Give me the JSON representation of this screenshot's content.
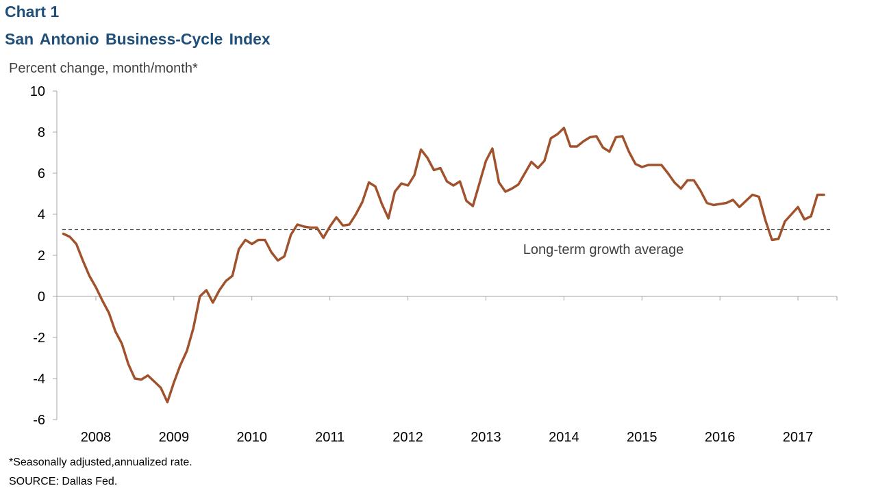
{
  "header": {
    "chart_label": "Chart 1",
    "title": "San Antonio  Business-Cycle  Index"
  },
  "footer": {
    "footnote": "*Seasonally adjusted,annualized rate.",
    "source": "SOURCE: Dallas Fed."
  },
  "colors": {
    "series": "#a0522d",
    "reference_line": "#404040",
    "title": "#1f4e79"
  },
  "chart_data": {
    "type": "line",
    "title": "San Antonio  Business-Cycle  Index",
    "ylabel": "Percent change, month/month*",
    "xlabel": "",
    "ylim": [
      -6,
      10
    ],
    "yticks": [
      -6,
      -4,
      -2,
      0,
      2,
      4,
      6,
      8,
      10
    ],
    "xlim": [
      2007.5,
      2017.5
    ],
    "xtick_labels": [
      "2008",
      "2009",
      "2010",
      "2011",
      "2012",
      "2013",
      "2014",
      "2015",
      "2016",
      "2017"
    ],
    "grid": false,
    "reference_line": {
      "value": 3.25,
      "label": "Long-term growth average",
      "style": "dashed"
    },
    "series": [
      {
        "values": [
          [
            2007.583,
            3.05
          ],
          [
            2007.667,
            2.9
          ],
          [
            2007.75,
            2.55
          ],
          [
            2007.833,
            1.75
          ],
          [
            2007.917,
            1.0
          ],
          [
            2008.0,
            0.45
          ],
          [
            2008.083,
            -0.2
          ],
          [
            2008.167,
            -0.8
          ],
          [
            2008.25,
            -1.7
          ],
          [
            2008.333,
            -2.3
          ],
          [
            2008.417,
            -3.3
          ],
          [
            2008.5,
            -4.0
          ],
          [
            2008.583,
            -4.05
          ],
          [
            2008.667,
            -3.85
          ],
          [
            2008.75,
            -4.15
          ],
          [
            2008.833,
            -4.45
          ],
          [
            2008.917,
            -5.15
          ],
          [
            2009.0,
            -4.2
          ],
          [
            2009.083,
            -3.35
          ],
          [
            2009.167,
            -2.65
          ],
          [
            2009.25,
            -1.55
          ],
          [
            2009.333,
            0.0
          ],
          [
            2009.417,
            0.3
          ],
          [
            2009.5,
            -0.3
          ],
          [
            2009.583,
            0.3
          ],
          [
            2009.667,
            0.75
          ],
          [
            2009.75,
            1.0
          ],
          [
            2009.833,
            2.3
          ],
          [
            2009.917,
            2.75
          ],
          [
            2010.0,
            2.55
          ],
          [
            2010.083,
            2.75
          ],
          [
            2010.167,
            2.75
          ],
          [
            2010.25,
            2.15
          ],
          [
            2010.333,
            1.75
          ],
          [
            2010.417,
            1.95
          ],
          [
            2010.5,
            3.0
          ],
          [
            2010.583,
            3.5
          ],
          [
            2010.667,
            3.4
          ],
          [
            2010.75,
            3.35
          ],
          [
            2010.833,
            3.35
          ],
          [
            2010.917,
            2.85
          ],
          [
            2011.0,
            3.4
          ],
          [
            2011.083,
            3.85
          ],
          [
            2011.167,
            3.45
          ],
          [
            2011.25,
            3.5
          ],
          [
            2011.333,
            4.0
          ],
          [
            2011.417,
            4.6
          ],
          [
            2011.5,
            5.55
          ],
          [
            2011.583,
            5.35
          ],
          [
            2011.667,
            4.5
          ],
          [
            2011.75,
            3.8
          ],
          [
            2011.833,
            5.1
          ],
          [
            2011.917,
            5.5
          ],
          [
            2012.0,
            5.4
          ],
          [
            2012.083,
            5.9
          ],
          [
            2012.167,
            7.15
          ],
          [
            2012.25,
            6.75
          ],
          [
            2012.333,
            6.15
          ],
          [
            2012.417,
            6.25
          ],
          [
            2012.5,
            5.6
          ],
          [
            2012.583,
            5.4
          ],
          [
            2012.667,
            5.6
          ],
          [
            2012.75,
            4.65
          ],
          [
            2012.833,
            4.4
          ],
          [
            2013.0,
            6.6
          ],
          [
            2013.083,
            7.2
          ],
          [
            2013.167,
            5.55
          ],
          [
            2013.25,
            5.1
          ],
          [
            2013.333,
            5.25
          ],
          [
            2013.417,
            5.45
          ],
          [
            2013.5,
            6.0
          ],
          [
            2013.583,
            6.55
          ],
          [
            2013.667,
            6.25
          ],
          [
            2013.75,
            6.6
          ],
          [
            2013.833,
            7.7
          ],
          [
            2013.917,
            7.9
          ],
          [
            2014.0,
            8.2
          ],
          [
            2014.083,
            7.3
          ],
          [
            2014.167,
            7.3
          ],
          [
            2014.25,
            7.55
          ],
          [
            2014.333,
            7.75
          ],
          [
            2014.417,
            7.8
          ],
          [
            2014.5,
            7.25
          ],
          [
            2014.583,
            7.05
          ],
          [
            2014.667,
            7.75
          ],
          [
            2014.75,
            7.8
          ],
          [
            2014.833,
            7.05
          ],
          [
            2014.917,
            6.45
          ],
          [
            2015.0,
            6.3
          ],
          [
            2015.083,
            6.4
          ],
          [
            2015.167,
            6.4
          ],
          [
            2015.25,
            6.4
          ],
          [
            2015.333,
            6.0
          ],
          [
            2015.417,
            5.55
          ],
          [
            2015.5,
            5.25
          ],
          [
            2015.583,
            5.65
          ],
          [
            2015.667,
            5.65
          ],
          [
            2015.75,
            5.15
          ],
          [
            2015.833,
            4.55
          ],
          [
            2015.917,
            4.45
          ],
          [
            2016.0,
            4.5
          ],
          [
            2016.083,
            4.55
          ],
          [
            2016.167,
            4.7
          ],
          [
            2016.25,
            4.35
          ],
          [
            2016.333,
            4.65
          ],
          [
            2016.417,
            4.95
          ],
          [
            2016.5,
            4.85
          ],
          [
            2016.583,
            3.7
          ],
          [
            2016.667,
            2.75
          ],
          [
            2016.75,
            2.8
          ],
          [
            2016.833,
            3.65
          ],
          [
            2016.917,
            4.0
          ],
          [
            2017.0,
            4.35
          ],
          [
            2017.083,
            3.75
          ],
          [
            2017.167,
            3.9
          ],
          [
            2017.25,
            4.95
          ],
          [
            2017.333,
            4.95
          ]
        ]
      }
    ]
  }
}
